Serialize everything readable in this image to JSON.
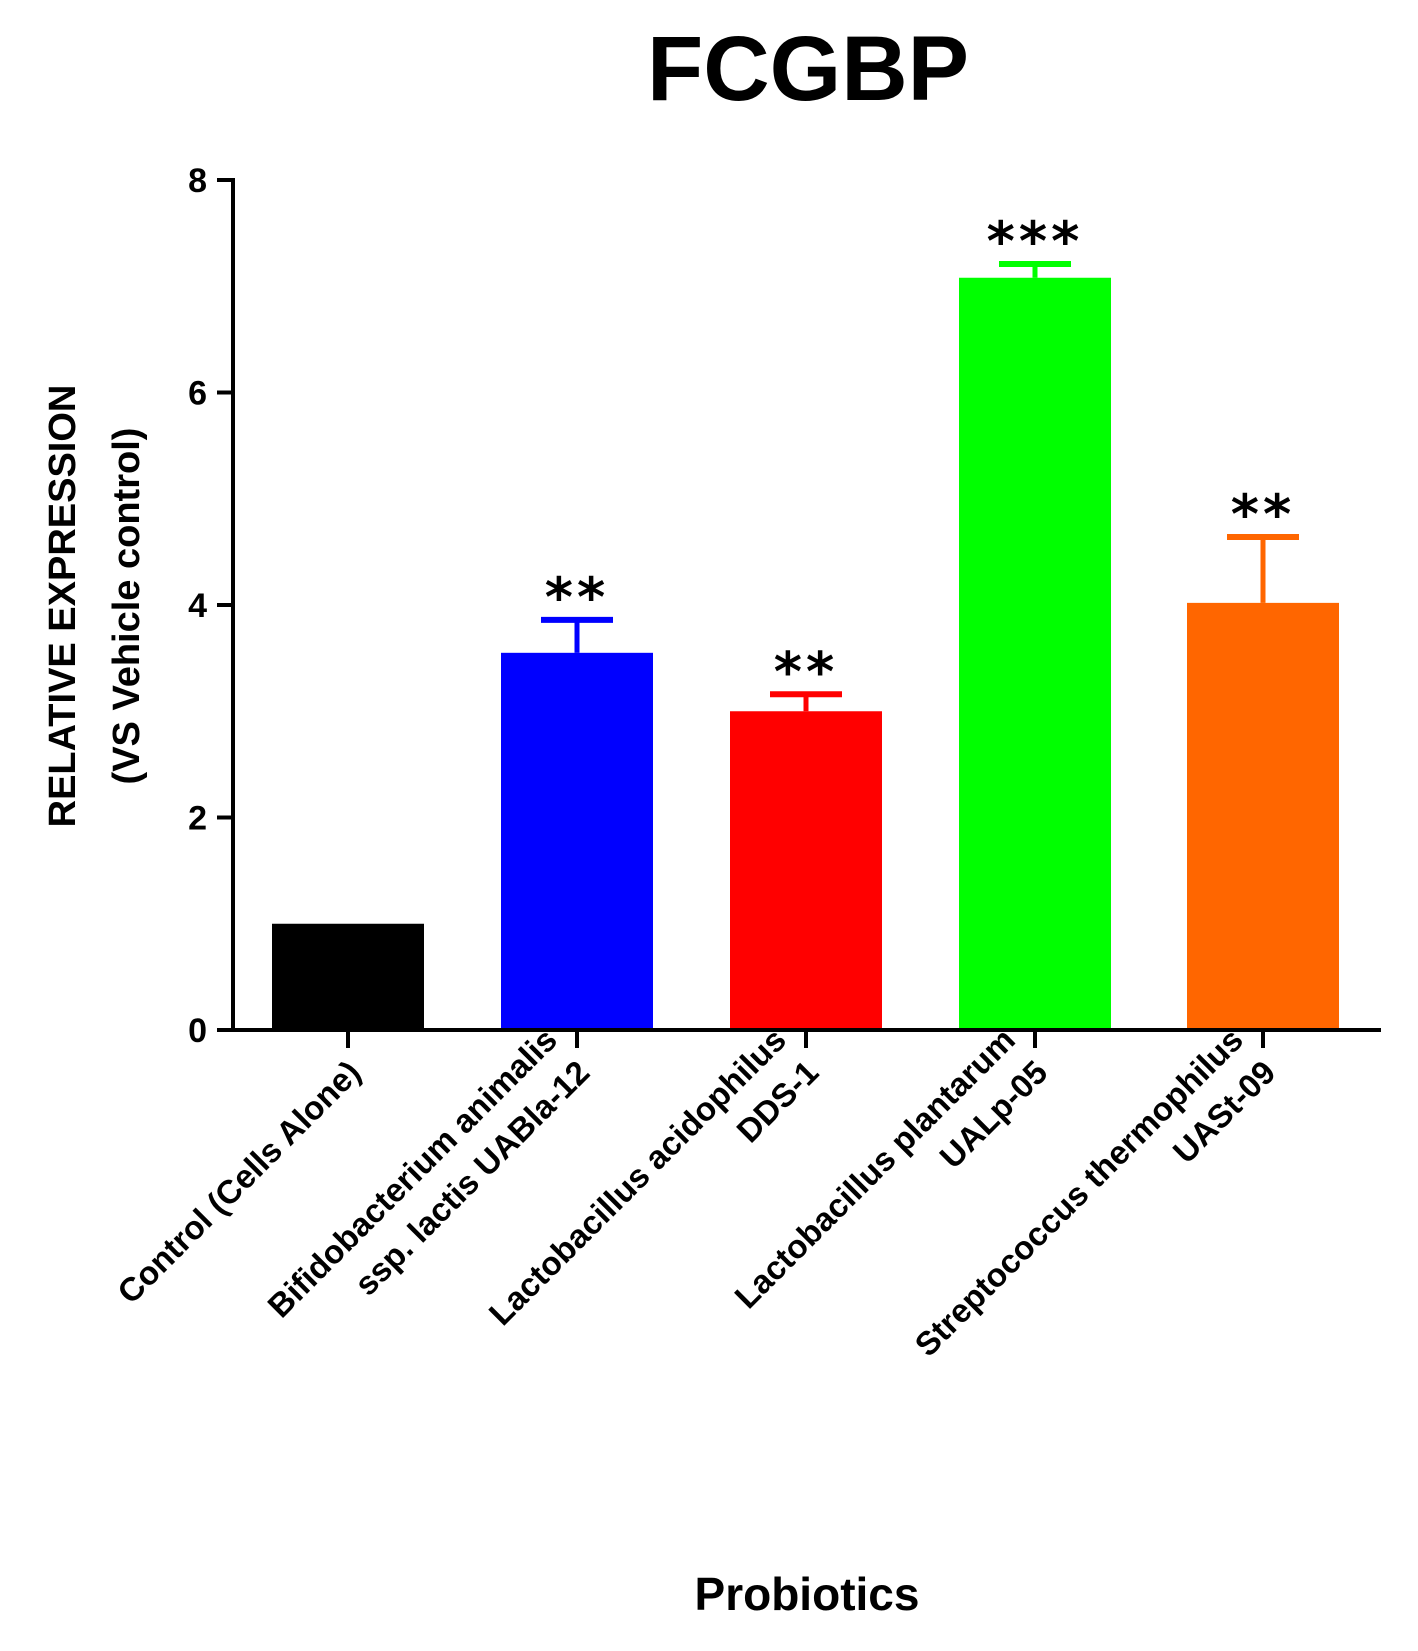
{
  "chart_data": {
    "type": "bar",
    "title": "FCGBP",
    "xlabel": "Probiotics",
    "ylabel_line1": "RELATIVE EXPRESSION",
    "ylabel_line2": "(VS Vehicle control)",
    "ylim": [
      0,
      8
    ],
    "yticks": [
      0,
      2,
      4,
      6,
      8
    ],
    "categories": [
      [
        "Control (Cells Alone)"
      ],
      [
        "Bifidobacterium animalis",
        "ssp. lactis UABla-12"
      ],
      [
        "Lactobacillus acidophilus",
        "DDS-1"
      ],
      [
        "Lactobacillus plantarum",
        "UALp-05"
      ],
      [
        "Streptococcus thermophilus",
        "UASt-09"
      ]
    ],
    "values": [
      1.0,
      3.55,
      3.0,
      7.08,
      4.02
    ],
    "errors": [
      0,
      0.31,
      0.16,
      0.13,
      0.62
    ],
    "significance": [
      "",
      "**",
      "**",
      "***",
      "**"
    ],
    "colors": [
      "#000000",
      "#0000ff",
      "#ff0000",
      "#00ff00",
      "#ff6600"
    ]
  }
}
